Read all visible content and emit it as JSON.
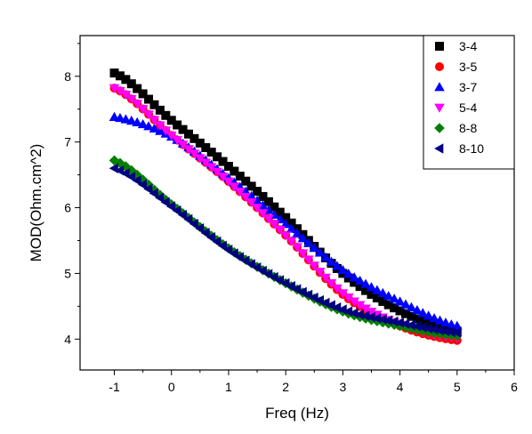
{
  "chart_data": {
    "type": "scatter",
    "title": "",
    "xlabel": "Freq (Hz)",
    "ylabel": "MOD(Ohm.cm^2)",
    "xlim": [
      -1.6,
      6.0
    ],
    "ylim": [
      3.53,
      8.62
    ],
    "xticks": [
      -1,
      0,
      1,
      2,
      3,
      4,
      5,
      6
    ],
    "yticks": [
      4,
      5,
      6,
      7,
      8
    ],
    "grid": false,
    "legend_position": "top-right",
    "x_range": [
      -1.0,
      5.0
    ],
    "x_step": 0.1,
    "series": [
      {
        "name": "3-4",
        "marker": "square",
        "color": "#000000",
        "x": [
          -1,
          0,
          1,
          2,
          3,
          4,
          5
        ],
        "y": [
          8.05,
          7.33,
          6.63,
          5.85,
          5.0,
          4.43,
          4.12
        ]
      },
      {
        "name": "3-5",
        "marker": "circle",
        "color": "#ff0000",
        "x": [
          -1,
          0,
          1,
          2,
          3,
          4,
          5
        ],
        "y": [
          7.82,
          7.1,
          6.4,
          5.58,
          4.68,
          4.2,
          3.98
        ]
      },
      {
        "name": "3-7",
        "marker": "triangle-up",
        "color": "#0000ff",
        "x": [
          -1,
          0,
          1,
          2,
          3,
          4,
          5
        ],
        "y": [
          7.38,
          7.08,
          6.45,
          5.75,
          5.05,
          4.57,
          4.2
        ]
      },
      {
        "name": "5-4",
        "marker": "triangle-down",
        "color": "#ff00ff",
        "x": [
          -1,
          0,
          1,
          2,
          3,
          4,
          5
        ],
        "y": [
          7.82,
          7.1,
          6.4,
          5.58,
          4.7,
          4.22,
          4.02
        ]
      },
      {
        "name": "8-8",
        "marker": "diamond",
        "color": "#008000",
        "x": [
          -1,
          0,
          1,
          2,
          3,
          4,
          5
        ],
        "y": [
          6.72,
          6.05,
          5.38,
          4.85,
          4.42,
          4.2,
          4.05
        ]
      },
      {
        "name": "8-10",
        "marker": "triangle-left",
        "color": "#000080",
        "x": [
          -1,
          0,
          1,
          2,
          3,
          4,
          5
        ],
        "y": [
          6.6,
          6.02,
          5.36,
          4.85,
          4.45,
          4.25,
          4.1
        ]
      }
    ]
  }
}
